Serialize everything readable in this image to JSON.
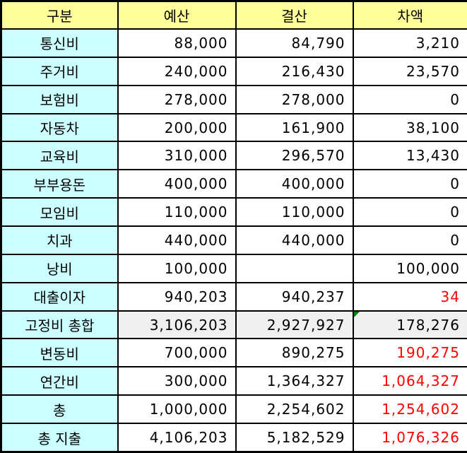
{
  "table": {
    "columns": [
      "구분",
      "예산",
      "결산",
      "차액"
    ],
    "rows": [
      {
        "category": "통신비",
        "budget": "88,000",
        "actual": "84,790",
        "diff": "3,210",
        "diff_red": false,
        "summary": false,
        "error_marker": false
      },
      {
        "category": "주거비",
        "budget": "240,000",
        "actual": "216,430",
        "diff": "23,570",
        "diff_red": false,
        "summary": false,
        "error_marker": false
      },
      {
        "category": "보험비",
        "budget": "278,000",
        "actual": "278,000",
        "diff": "0",
        "diff_red": false,
        "summary": false,
        "error_marker": false
      },
      {
        "category": "자동차",
        "budget": "200,000",
        "actual": "161,900",
        "diff": "38,100",
        "diff_red": false,
        "summary": false,
        "error_marker": false
      },
      {
        "category": "교육비",
        "budget": "310,000",
        "actual": "296,570",
        "diff": "13,430",
        "diff_red": false,
        "summary": false,
        "error_marker": false
      },
      {
        "category": "부부용돈",
        "budget": "400,000",
        "actual": "400,000",
        "diff": "0",
        "diff_red": false,
        "summary": false,
        "error_marker": false
      },
      {
        "category": "모임비",
        "budget": "110,000",
        "actual": "110,000",
        "diff": "0",
        "diff_red": false,
        "summary": false,
        "error_marker": false
      },
      {
        "category": "치과",
        "budget": "440,000",
        "actual": "440,000",
        "diff": "0",
        "diff_red": false,
        "summary": false,
        "error_marker": false
      },
      {
        "category": "낭비",
        "budget": "100,000",
        "actual": "",
        "diff": "100,000",
        "diff_red": false,
        "summary": false,
        "error_marker": false
      },
      {
        "category": "대출이자",
        "budget": "940,203",
        "actual": "940,237",
        "diff": "34",
        "diff_red": true,
        "summary": false,
        "error_marker": false
      },
      {
        "category": "고정비 총합",
        "budget": "3,106,203",
        "actual": "2,927,927",
        "diff": "178,276",
        "diff_red": false,
        "summary": true,
        "error_marker": true
      },
      {
        "category": "변동비",
        "budget": "700,000",
        "actual": "890,275",
        "diff": "190,275",
        "diff_red": true,
        "summary": false,
        "error_marker": false
      },
      {
        "category": "연간비",
        "budget": "300,000",
        "actual": "1,364,327",
        "diff": "1,064,327",
        "diff_red": true,
        "summary": false,
        "error_marker": false
      },
      {
        "category": "총",
        "budget": "1,000,000",
        "actual": "2,254,602",
        "diff": "1,254,602",
        "diff_red": true,
        "summary": false,
        "error_marker": false
      },
      {
        "category": "총 지출",
        "budget": "4,106,203",
        "actual": "5,182,529",
        "diff": "1,076,326",
        "diff_red": true,
        "summary": false,
        "error_marker": false
      }
    ],
    "colors": {
      "header_bg": "#FFFF99",
      "category_bg": "#CCFFFF",
      "summary_bg": "#F0F0F0",
      "negative_text": "#FF0000",
      "border": "#000000",
      "error_marker": "#008000"
    }
  }
}
